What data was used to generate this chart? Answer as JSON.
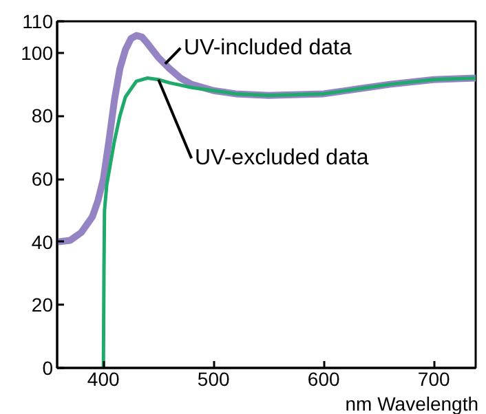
{
  "chart_data": {
    "type": "line",
    "xlabel": "nm Wavelength",
    "xlim": [
      358,
      738
    ],
    "xticks": [
      400,
      500,
      600,
      700
    ],
    "ylim": [
      0,
      110
    ],
    "yticks": [
      0,
      20,
      40,
      60,
      80,
      100,
      110
    ],
    "grid": false,
    "marker": "none",
    "line_style": "solid",
    "series": [
      {
        "color": "#9484c4",
        "x": [
          358,
          370,
          380,
          390,
          395,
          400,
          405,
          410,
          415,
          420,
          425,
          430,
          435,
          440,
          450,
          460,
          470,
          480,
          500,
          520,
          550,
          600,
          630,
          660,
          700,
          738
        ],
        "values": [
          40,
          40.5,
          43,
          48,
          53,
          60,
          72,
          85,
          95,
          101,
          104.5,
          105.5,
          105,
          103,
          98.5,
          95,
          92,
          90,
          88,
          87,
          86.5,
          87,
          88.5,
          90,
          91.5,
          92
        ]
      },
      {
        "color": "#1faa6c",
        "x": [
          400,
          400.5,
          401,
          403,
          410,
          415,
          420,
          430,
          440,
          450,
          460,
          480,
          500,
          520,
          550,
          600,
          630,
          660,
          700,
          738
        ],
        "values": [
          0,
          30,
          50,
          58,
          72,
          80,
          86,
          91,
          92,
          91.5,
          90.5,
          89,
          88,
          87,
          86.5,
          87,
          88.5,
          90,
          91.5,
          92
        ]
      }
    ],
    "annotations": [
      {
        "text": "UV-included data",
        "x": 456,
        "y": 96.5
      },
      {
        "text": "UV-excluded data",
        "x": 450,
        "y": 91.5
      }
    ]
  }
}
